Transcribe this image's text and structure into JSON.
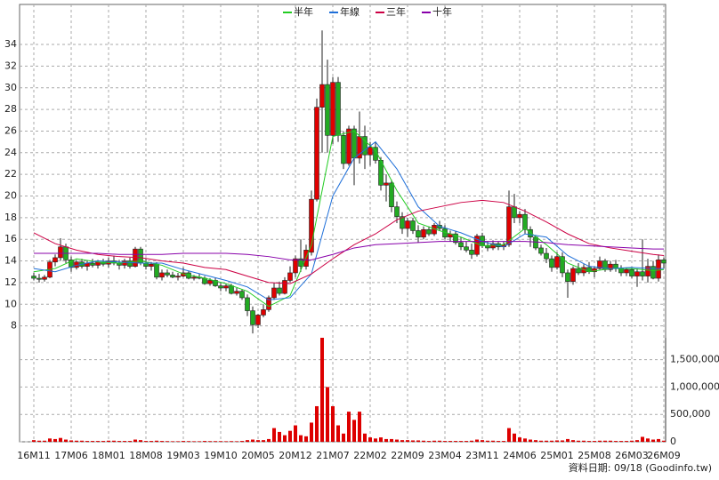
{
  "chart_data": {
    "type": "candlestick",
    "legend_position": "top",
    "grid": true,
    "up_color": "#e00000",
    "down_color": "#22aa22",
    "volume_color": "#dd0000",
    "footer": "資料日期: 09/18 (Goodinfo.tw)",
    "categories": [
      "16M11",
      null,
      null,
      null,
      null,
      null,
      null,
      "17M06",
      null,
      null,
      null,
      null,
      null,
      null,
      "18M01",
      null,
      null,
      null,
      null,
      null,
      null,
      "18M08",
      null,
      null,
      null,
      null,
      null,
      null,
      "19M03",
      null,
      null,
      null,
      null,
      null,
      null,
      "19M10",
      null,
      null,
      null,
      null,
      null,
      null,
      "20M05",
      null,
      null,
      null,
      null,
      null,
      null,
      "20M12",
      null,
      null,
      null,
      null,
      null,
      null,
      "21M07",
      null,
      null,
      null,
      null,
      null,
      null,
      "22M02",
      null,
      null,
      null,
      null,
      null,
      null,
      "22M09",
      null,
      null,
      null,
      null,
      null,
      null,
      "23M04",
      null,
      null,
      null,
      null,
      null,
      null,
      "23M11",
      null,
      null,
      null,
      null,
      null,
      null,
      "24M06",
      null,
      null,
      null,
      null,
      null,
      null,
      "25M01",
      null,
      null,
      null,
      null,
      null,
      null,
      "25M08",
      null,
      null,
      null,
      null,
      null,
      null,
      "26M03",
      null,
      null,
      null,
      null,
      null,
      "26M09"
    ],
    "open": [
      12.6,
      12.4,
      12.3,
      12.5,
      13.9,
      14.3,
      15.3,
      14.1,
      13.4,
      13.9,
      13.5,
      13.8,
      13.6,
      13.9,
      13.7,
      14.0,
      13.8,
      13.6,
      14.0,
      13.5,
      15.1,
      13.8,
      13.5,
      13.7,
      12.5,
      12.9,
      12.7,
      12.5,
      12.6,
      12.9,
      12.4,
      12.5,
      12.4,
      11.9,
      12.2,
      11.7,
      11.5,
      11.7,
      11.0,
      11.2,
      10.6,
      9.4,
      8.1,
      9.0,
      9.5,
      10.6,
      11.5,
      11.0,
      12.2,
      12.9,
      14.2,
      13.5,
      14.8,
      19.7,
      28.2,
      30.3,
      25.6,
      30.5,
      25.6,
      23.0,
      26.2,
      23.5,
      25.5,
      23.8,
      24.5,
      23.3,
      21.0,
      21.2,
      19.0,
      18.1,
      17.0,
      17.7,
      16.8,
      16.2,
      16.9,
      16.5,
      17.3,
      17.0,
      16.2,
      16.5,
      15.7,
      15.3,
      15.0,
      14.6,
      16.3,
      15.4,
      15.2,
      15.6,
      15.3,
      15.5,
      19.0,
      18.0,
      18.3,
      16.9,
      16.2,
      15.2,
      14.7,
      14.2,
      13.4,
      14.4,
      12.9,
      12.1,
      13.3,
      12.9,
      13.4,
      13.0,
      13.3,
      14.0,
      13.2,
      13.7,
      13.3,
      12.9,
      13.2,
      12.6,
      13.0,
      12.6,
      13.5,
      12.4,
      14.1
    ],
    "high": [
      12.9,
      12.8,
      12.7,
      14.1,
      14.6,
      16.1,
      15.6,
      14.4,
      14.1,
      14.2,
      14.0,
      14.2,
      14.1,
      14.2,
      14.3,
      14.5,
      14.1,
      14.2,
      14.3,
      15.3,
      15.3,
      14.2,
      13.9,
      13.9,
      13.2,
      13.2,
      13.0,
      12.9,
      13.4,
      13.1,
      12.7,
      12.8,
      12.6,
      12.4,
      12.4,
      12.0,
      11.9,
      11.9,
      11.5,
      11.4,
      10.9,
      9.8,
      9.1,
      10.0,
      10.8,
      12.0,
      12.1,
      12.5,
      13.5,
      14.5,
      16.0,
      15.5,
      20.5,
      29.0,
      35.3,
      32.6,
      31.0,
      31.0,
      26.0,
      26.5,
      26.5,
      27.8,
      26.5,
      25.0,
      25.0,
      23.6,
      22.0,
      21.5,
      19.5,
      18.5,
      18.0,
      18.0,
      17.3,
      17.2,
      17.2,
      17.5,
      17.7,
      17.3,
      16.8,
      16.8,
      16.2,
      15.8,
      15.6,
      16.5,
      16.6,
      15.8,
      15.9,
      15.8,
      15.8,
      20.5,
      20.2,
      18.6,
      18.8,
      17.2,
      16.4,
      15.5,
      15.2,
      14.5,
      14.8,
      14.8,
      13.2,
      13.5,
      13.8,
      13.7,
      13.9,
      13.5,
      14.4,
      14.2,
      14.0,
      14.1,
      13.6,
      13.4,
      13.4,
      13.3,
      16.0,
      14.2,
      14.0,
      14.6,
      14.3
    ],
    "low": [
      12.2,
      12.0,
      12.1,
      12.4,
      13.5,
      14.0,
      13.8,
      13.0,
      13.2,
      13.3,
      13.1,
      13.4,
      13.3,
      13.5,
      13.4,
      13.6,
      13.2,
      13.3,
      13.3,
      13.4,
      13.6,
      13.2,
      13.1,
      12.3,
      12.2,
      12.5,
      12.4,
      12.2,
      12.5,
      12.3,
      12.2,
      12.3,
      11.8,
      11.7,
      11.6,
      11.2,
      11.2,
      10.9,
      10.8,
      10.4,
      8.9,
      7.3,
      7.8,
      8.8,
      9.3,
      10.4,
      10.8,
      10.9,
      12.0,
      12.5,
      13.0,
      13.2,
      14.5,
      19.5,
      24.0,
      24.0,
      24.8,
      25.0,
      22.5,
      22.8,
      21.0,
      23.0,
      22.5,
      22.8,
      23.0,
      20.5,
      19.5,
      18.5,
      17.5,
      16.5,
      16.2,
      16.5,
      15.7,
      16.0,
      16.3,
      16.3,
      16.8,
      16.0,
      15.8,
      15.5,
      15.0,
      14.8,
      14.2,
      14.4,
      15.2,
      14.9,
      15.0,
      15.0,
      15.0,
      15.3,
      17.5,
      17.5,
      16.5,
      15.3,
      15.0,
      14.5,
      13.8,
      13.0,
      13.2,
      12.5,
      10.6,
      11.8,
      12.7,
      12.6,
      12.8,
      12.5,
      13.2,
      13.0,
      13.0,
      13.0,
      12.6,
      12.6,
      12.4,
      11.6,
      12.2,
      12.0,
      12.3,
      12.1,
      13.3
    ],
    "close": [
      12.4,
      12.3,
      12.5,
      13.9,
      14.3,
      15.3,
      14.1,
      13.4,
      13.9,
      13.5,
      13.8,
      13.6,
      13.9,
      13.7,
      14.0,
      13.8,
      13.6,
      14.0,
      13.5,
      15.1,
      13.8,
      13.5,
      13.7,
      12.5,
      12.9,
      12.7,
      12.5,
      12.6,
      12.9,
      12.4,
      12.5,
      12.4,
      11.9,
      12.2,
      11.7,
      11.5,
      11.7,
      11.0,
      11.2,
      10.6,
      9.4,
      8.1,
      9.0,
      9.5,
      10.6,
      11.5,
      11.0,
      12.2,
      12.9,
      14.2,
      13.5,
      15.0,
      19.7,
      28.2,
      30.3,
      25.6,
      30.5,
      25.6,
      23.0,
      26.2,
      23.5,
      25.5,
      23.8,
      24.5,
      23.3,
      21.0,
      21.2,
      19.0,
      18.1,
      17.0,
      17.7,
      16.8,
      16.2,
      16.9,
      16.5,
      17.3,
      17.0,
      16.2,
      16.5,
      15.7,
      15.3,
      15.0,
      14.6,
      16.3,
      15.4,
      15.2,
      15.6,
      15.3,
      15.5,
      19.0,
      18.0,
      18.3,
      16.9,
      16.2,
      15.2,
      14.7,
      14.2,
      13.4,
      14.4,
      12.9,
      12.1,
      13.3,
      12.9,
      13.4,
      13.0,
      13.3,
      14.0,
      13.2,
      13.7,
      13.3,
      12.9,
      13.2,
      12.6,
      13.0,
      12.6,
      13.5,
      12.4,
      14.1,
      13.8
    ],
    "volume": [
      30000,
      20000,
      20000,
      60000,
      50000,
      70000,
      40000,
      25000,
      20000,
      20000,
      15000,
      15000,
      15000,
      15000,
      20000,
      20000,
      15000,
      15000,
      15000,
      40000,
      30000,
      15000,
      15000,
      20000,
      15000,
      12000,
      10000,
      10000,
      15000,
      12000,
      10000,
      10000,
      15000,
      12000,
      12000,
      12000,
      10000,
      12000,
      10000,
      15000,
      30000,
      40000,
      30000,
      30000,
      50000,
      250000,
      180000,
      120000,
      200000,
      300000,
      120000,
      100000,
      350000,
      650000,
      1900000,
      1000000,
      650000,
      300000,
      150000,
      550000,
      400000,
      550000,
      150000,
      80000,
      60000,
      80000,
      50000,
      50000,
      40000,
      30000,
      30000,
      25000,
      25000,
      20000,
      15000,
      20000,
      20000,
      15000,
      15000,
      15000,
      15000,
      15000,
      20000,
      40000,
      30000,
      20000,
      20000,
      15000,
      15000,
      250000,
      150000,
      80000,
      60000,
      40000,
      30000,
      20000,
      20000,
      20000,
      25000,
      25000,
      50000,
      30000,
      20000,
      20000,
      15000,
      15000,
      20000,
      20000,
      20000,
      15000,
      15000,
      15000,
      20000,
      30000,
      90000,
      60000,
      40000,
      50000,
      20000
    ],
    "ylim": [
      6.9,
      37.7
    ],
    "yticks": [
      8,
      10,
      12,
      14,
      16,
      18,
      20,
      22,
      24,
      26,
      28,
      30,
      32,
      34
    ],
    "y2lim": [
      0,
      1900000
    ],
    "y2ticks": [
      0,
      {
        "value": 500000,
        "label": "500,000"
      },
      {
        "value": 1000000,
        "label": "1,000,000"
      },
      {
        "value": 1500000,
        "label": "1,500,000"
      }
    ],
    "lines": [
      {
        "name": "半年",
        "color": "#22cc22",
        "x": [
          0,
          4,
          8,
          12,
          16,
          20,
          24,
          28,
          32,
          36,
          40,
          44,
          48,
          52,
          56,
          60,
          64,
          68,
          72,
          76,
          80,
          84,
          88,
          92,
          96,
          100,
          104,
          108,
          112,
          116,
          118
        ],
        "values": [
          13.0,
          13.3,
          14.2,
          13.9,
          13.8,
          14.0,
          13.6,
          12.8,
          12.4,
          11.9,
          11.2,
          9.8,
          10.8,
          15.5,
          25.5,
          26.0,
          24.2,
          20.5,
          17.5,
          16.8,
          16.2,
          15.4,
          15.5,
          17.0,
          15.5,
          13.8,
          13.0,
          13.3,
          13.3,
          13.1,
          13.2
        ]
      },
      {
        "name": "年線",
        "color": "#1e6fd9",
        "x": [
          0,
          4,
          8,
          12,
          16,
          20,
          24,
          28,
          32,
          36,
          40,
          44,
          48,
          52,
          56,
          60,
          64,
          68,
          72,
          76,
          80,
          84,
          88,
          92,
          96,
          100,
          104,
          108,
          112,
          116,
          118
        ],
        "values": [
          13.3,
          13.0,
          13.6,
          14.0,
          13.9,
          13.8,
          13.8,
          13.2,
          12.7,
          12.2,
          11.6,
          10.4,
          10.6,
          12.8,
          20,
          23.5,
          25.0,
          22.5,
          19.0,
          17.2,
          16.6,
          15.8,
          15.3,
          16.5,
          16.2,
          14.5,
          13.5,
          13.3,
          13.4,
          13.3,
          13.3
        ]
      },
      {
        "name": "三年",
        "color": "#cc0044",
        "x": [
          0,
          4,
          8,
          12,
          16,
          20,
          24,
          28,
          32,
          36,
          40,
          44,
          48,
          52,
          56,
          60,
          64,
          68,
          72,
          76,
          80,
          84,
          88,
          92,
          96,
          100,
          104,
          108,
          112,
          116,
          118
        ],
        "values": [
          16.6,
          15.6,
          15.0,
          14.6,
          14.4,
          14.3,
          14.0,
          13.8,
          13.4,
          13.2,
          12.6,
          12.0,
          11.9,
          12.8,
          14.2,
          15.5,
          16.5,
          17.8,
          18.6,
          19.0,
          19.4,
          19.6,
          19.4,
          18.6,
          17.6,
          16.5,
          15.6,
          15.2,
          14.9,
          14.6,
          14.5
        ]
      },
      {
        "name": "十年",
        "color": "#8800aa",
        "x": [
          0,
          4,
          8,
          12,
          16,
          20,
          24,
          28,
          32,
          36,
          40,
          44,
          48,
          52,
          56,
          60,
          64,
          68,
          72,
          76,
          80,
          84,
          88,
          92,
          96,
          100,
          104,
          108,
          112,
          116,
          118
        ],
        "values": [
          14.7,
          14.7,
          14.7,
          14.7,
          14.6,
          14.6,
          14.6,
          14.7,
          14.7,
          14.7,
          14.6,
          14.4,
          14.1,
          14.1,
          14.6,
          15.2,
          15.5,
          15.6,
          15.7,
          15.8,
          15.8,
          15.8,
          15.8,
          15.8,
          15.7,
          15.5,
          15.4,
          15.3,
          15.2,
          15.1,
          15.1
        ]
      }
    ]
  }
}
